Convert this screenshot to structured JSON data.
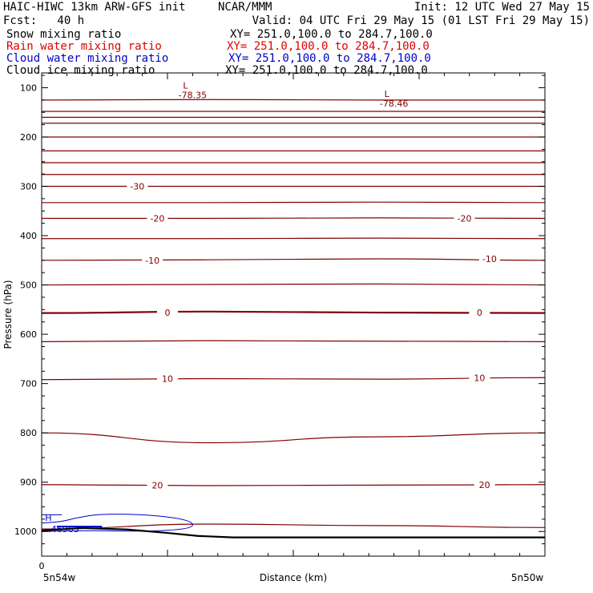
{
  "header": {
    "title": "HAIC-HIWC 13km ARW-GFS init",
    "org": "NCAR/MMM",
    "init": "Init: 12 UTC Wed 27 May 15",
    "fcst": "Fcst:   40 h",
    "valid": "Valid: 04 UTC Fri 29 May 15 (01 LST Fri 29 May 15)",
    "fields": [
      {
        "name": "Snow mixing ratio",
        "xy": "XY= 251.0,100.0 to 284.7,100.0",
        "color": "#000000"
      },
      {
        "name": "Rain water mixing ratio",
        "xy": "XY= 251.0,100.0 to 284.7,100.0",
        "color": "#e00000"
      },
      {
        "name": "Cloud water mixing ratio",
        "xy": "XY= 251.0,100.0 to 284.7,100.0",
        "color": "#0000c8"
      },
      {
        "name": "Cloud ice mixing ratio",
        "xy": "XY= 251.0,100.0 to 284.7,100.0",
        "color": "#000000"
      }
    ]
  },
  "chart_data": {
    "type": "line",
    "xlabel": "Distance (km)",
    "ylabel": "Pressure (hPa)",
    "x_tick_labels": [
      "0"
    ],
    "x_end_labels": [
      "5n54w",
      "5n50w"
    ],
    "yticks": [
      100,
      200,
      300,
      400,
      500,
      600,
      700,
      800,
      900,
      1000
    ],
    "ylim": [
      1050,
      70
    ],
    "contour_color": "#800000",
    "cloud_color": "#0000c8",
    "contour_levels": [
      {
        "level": -70,
        "y": [
          125,
          124,
          125,
          125
        ]
      },
      {
        "level": -65,
        "y": [
          148,
          148,
          148,
          148
        ]
      },
      {
        "level": -60,
        "y": [
          160,
          160,
          160,
          160
        ]
      },
      {
        "level": -55,
        "y": [
          172,
          172,
          172,
          172
        ]
      },
      {
        "level": -50,
        "y": [
          200,
          200,
          200,
          200
        ]
      },
      {
        "level": -45,
        "y": [
          228,
          228,
          228,
          228
        ]
      },
      {
        "level": -40,
        "y": [
          252,
          252,
          252,
          252
        ]
      },
      {
        "level": -35,
        "y": [
          276,
          276,
          276,
          276
        ]
      },
      {
        "level": -30,
        "y": [
          300,
          300,
          300,
          300
        ]
      },
      {
        "level": -25,
        "y": [
          333,
          333,
          332,
          333
        ]
      },
      {
        "level": -20,
        "y": [
          365,
          365,
          364,
          365
        ]
      },
      {
        "level": -15,
        "y": [
          406,
          406,
          405,
          406
        ]
      },
      {
        "level": -10,
        "y": [
          450,
          449,
          447,
          450
        ]
      },
      {
        "level": -5,
        "y": [
          500,
          499,
          498,
          500
        ]
      },
      {
        "level": 0,
        "y": [
          557,
          554,
          556,
          557
        ]
      },
      {
        "level": 5,
        "y": [
          615,
          613,
          614,
          615
        ]
      },
      {
        "level": 10,
        "y": [
          692,
          690,
          691,
          688
        ]
      },
      {
        "level": 15,
        "y": [
          800,
          820,
          808,
          800
        ]
      },
      {
        "level": 20,
        "y": [
          905,
          907,
          906,
          905
        ]
      },
      {
        "level": 25,
        "y": [
          995,
          985,
          988,
          992
        ]
      }
    ],
    "contour_labels": [
      {
        "text": "-30",
        "x": 0.19,
        "p": 300
      },
      {
        "text": "-20",
        "x": 0.23,
        "p": 365
      },
      {
        "text": "-20",
        "x": 0.84,
        "p": 365
      },
      {
        "text": "-10",
        "x": 0.22,
        "p": 450
      },
      {
        "text": "-10",
        "x": 0.89,
        "p": 447
      },
      {
        "text": "0",
        "x": 0.25,
        "p": 556
      },
      {
        "text": "0",
        "x": 0.87,
        "p": 556
      },
      {
        "text": "10",
        "x": 0.25,
        "p": 690
      },
      {
        "text": "10",
        "x": 0.87,
        "p": 688
      },
      {
        "text": "20",
        "x": 0.23,
        "p": 906
      },
      {
        "text": "20",
        "x": 0.88,
        "p": 905
      }
    ],
    "lows": [
      {
        "mark": "L",
        "value": "-78.35",
        "x": 0.3,
        "p": 95
      },
      {
        "mark": "L",
        "value": "-78.46",
        "x": 0.7,
        "p": 112
      }
    ],
    "cloud_high": {
      "mark": "H",
      "value": ".46963",
      "x": 0.01,
      "p": 988
    },
    "terrain": [
      {
        "x": 0.0,
        "p": 998
      },
      {
        "x": 0.08,
        "p": 993
      },
      {
        "x": 0.17,
        "p": 996
      },
      {
        "x": 0.25,
        "p": 1003
      },
      {
        "x": 0.31,
        "p": 1009
      },
      {
        "x": 0.38,
        "p": 1012
      },
      {
        "x": 0.7,
        "p": 1012
      },
      {
        "x": 1.0,
        "p": 1012
      }
    ]
  }
}
